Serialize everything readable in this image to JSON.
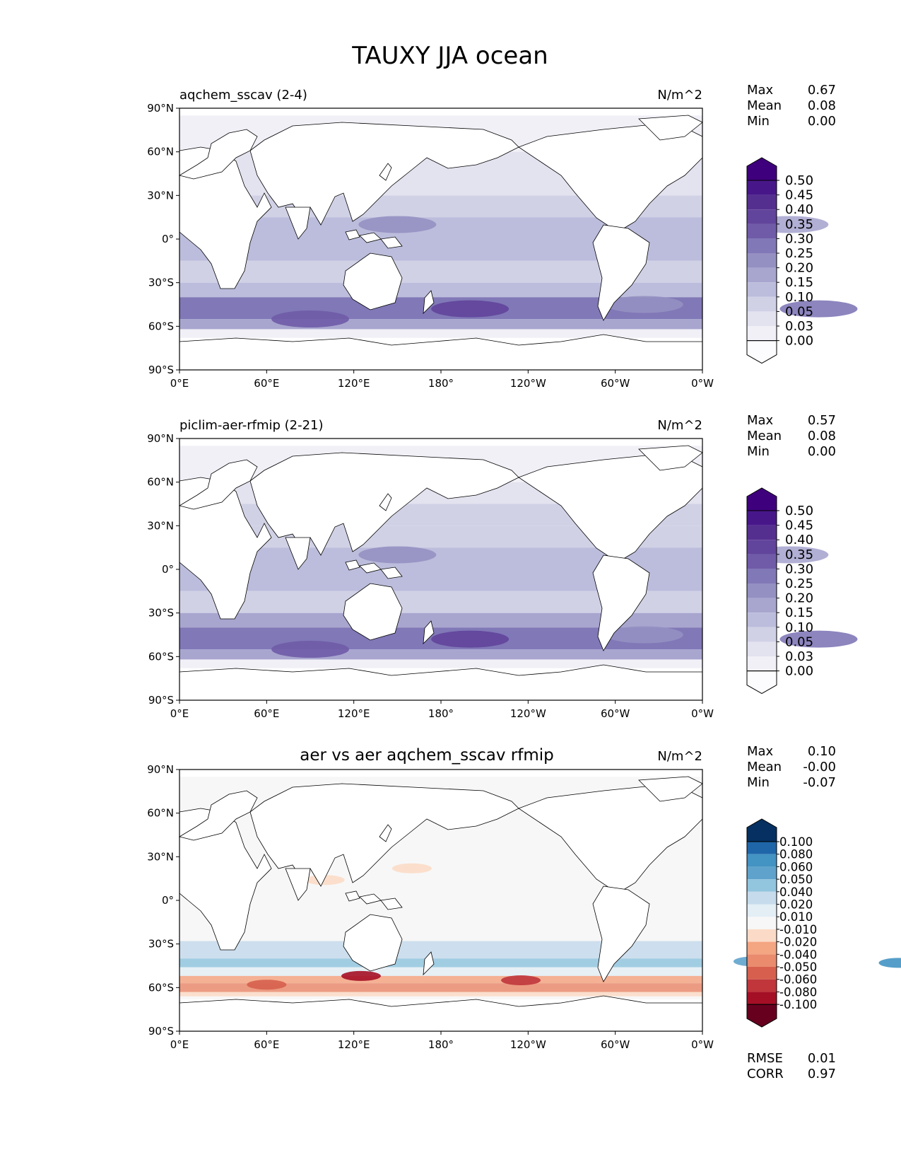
{
  "figure": {
    "title": "TAUXY JJA ocean"
  },
  "axes": {
    "lat_ticks": [
      "90°N",
      "60°N",
      "30°N",
      "0°",
      "30°S",
      "60°S",
      "90°S"
    ],
    "lon_ticks": [
      "0°E",
      "60°E",
      "120°E",
      "180°",
      "120°W",
      "60°W",
      "0°W"
    ],
    "lat_range": [
      -90,
      90
    ],
    "lon_range": [
      0,
      360
    ]
  },
  "panels": [
    {
      "title": "aqchem_sscav (2-4)",
      "title_align": "left",
      "units": "N/m^2",
      "stats": [
        {
          "label": "Max",
          "value": "0.67"
        },
        {
          "label": "Mean",
          "value": "0.08"
        },
        {
          "label": "Min",
          "value": "0.00"
        }
      ],
      "colorbar": {
        "levels": [
          "0.00",
          "0.03",
          "0.05",
          "0.10",
          "0.15",
          "0.20",
          "0.25",
          "0.30",
          "0.35",
          "0.40",
          "0.45",
          "0.50"
        ],
        "colors": [
          "#fcfbfd",
          "#f1f0f7",
          "#e3e2ef",
          "#d1d1e6",
          "#bcbddc",
          "#a8a6cf",
          "#9590c2",
          "#8078b7",
          "#6f5ba7",
          "#61449b",
          "#552f8f",
          "#47178a",
          "#3f007d"
        ]
      }
    },
    {
      "title": "piclim-aer-rfmip (2-21)",
      "title_align": "left",
      "units": "N/m^2",
      "stats": [
        {
          "label": "Max",
          "value": "0.57"
        },
        {
          "label": "Mean",
          "value": "0.08"
        },
        {
          "label": "Min",
          "value": "0.00"
        }
      ],
      "colorbar": {
        "levels": [
          "0.00",
          "0.03",
          "0.05",
          "0.10",
          "0.15",
          "0.20",
          "0.25",
          "0.30",
          "0.35",
          "0.40",
          "0.45",
          "0.50"
        ],
        "colors": [
          "#fcfbfd",
          "#f1f0f7",
          "#e3e2ef",
          "#d1d1e6",
          "#bcbddc",
          "#a8a6cf",
          "#9590c2",
          "#8078b7",
          "#6f5ba7",
          "#61449b",
          "#552f8f",
          "#47178a",
          "#3f007d"
        ]
      }
    },
    {
      "title": "aer vs aer aqchem_sscav rfmip",
      "title_align": "center",
      "units": "N/m^2",
      "stats": [
        {
          "label": "Max",
          "value": "0.10"
        },
        {
          "label": "Mean",
          "value": "-0.00"
        },
        {
          "label": "Min",
          "value": "-0.07"
        }
      ],
      "colorbar": {
        "levels": [
          "-0.100",
          "-0.080",
          "-0.060",
          "-0.050",
          "-0.040",
          "-0.020",
          "-0.010",
          "0.010",
          "0.020",
          "0.040",
          "0.050",
          "0.060",
          "0.080",
          "0.100"
        ],
        "colors": [
          "#67001f",
          "#a50f26",
          "#c0363b",
          "#d6604d",
          "#ea8b6e",
          "#f4a582",
          "#fbdbc7",
          "#f7f7f7",
          "#e3eef5",
          "#c6dbec",
          "#92c5de",
          "#5fa3cc",
          "#4393c3",
          "#1f66a9",
          "#053061"
        ]
      },
      "extra_stats": [
        {
          "label": "RMSE",
          "value": "0.01"
        },
        {
          "label": "CORR",
          "value": "0.97"
        }
      ]
    }
  ],
  "chart_data": {
    "type": "heatmap",
    "title": "TAUXY JJA ocean",
    "xlabel": "",
    "ylabel": "",
    "x_ticks": [
      "0°E",
      "60°E",
      "120°E",
      "180°",
      "120°W",
      "60°W",
      "0°W"
    ],
    "y_ticks": [
      "90°N",
      "60°N",
      "30°N",
      "0°",
      "30°S",
      "60°S",
      "90°S"
    ],
    "series": [
      {
        "name": "aqchem_sscav (2-4)",
        "max": 0.67,
        "mean": 0.08,
        "min": 0.0
      },
      {
        "name": "piclim-aer-rfmip (2-21)",
        "max": 0.57,
        "mean": 0.08,
        "min": 0.0
      },
      {
        "name": "aer vs aer aqchem_sscav rfmip",
        "max": 0.1,
        "mean": -0.0,
        "min": -0.07,
        "rmse": 0.01,
        "corr": 0.97
      }
    ]
  }
}
